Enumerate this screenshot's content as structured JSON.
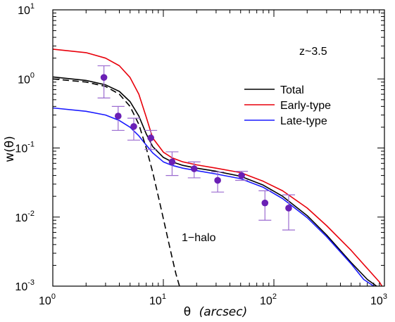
{
  "chart_data": {
    "type": "line",
    "xlabel": "θ",
    "xlabel_unit": "(arcsec)",
    "ylabel": "w(θ)",
    "xscale": "log",
    "yscale": "log",
    "xlim": [
      1,
      1000
    ],
    "ylim": [
      0.001,
      10
    ],
    "x_ticks": [
      {
        "base": "10",
        "exp": "0"
      },
      {
        "base": "10",
        "exp": "1"
      },
      {
        "base": "10",
        "exp": "2"
      },
      {
        "base": "10",
        "exp": "3"
      }
    ],
    "y_ticks": [
      {
        "base": "10",
        "exp": "1"
      },
      {
        "base": "10",
        "exp": "0"
      },
      {
        "base": "10",
        "exp": "-1"
      },
      {
        "base": "10",
        "exp": "-2"
      },
      {
        "base": "10",
        "exp": "-3"
      }
    ],
    "annotations": {
      "redshift": "z~3.5",
      "one_halo": "1−halo"
    },
    "legend_position": "upper-right",
    "series": [
      {
        "name": "Total",
        "color": "#000000",
        "style": "solid",
        "x": [
          1,
          2,
          3,
          4,
          5,
          6,
          7,
          8,
          10,
          12,
          15,
          20,
          30,
          50,
          80,
          120,
          200,
          300,
          500,
          700,
          850
        ],
        "y": [
          1.07,
          0.95,
          0.82,
          0.66,
          0.47,
          0.29,
          0.16,
          0.105,
          0.073,
          0.063,
          0.056,
          0.051,
          0.046,
          0.039,
          0.029,
          0.02,
          0.0105,
          0.0055,
          0.0022,
          0.00125,
          0.001
        ]
      },
      {
        "name": "Early-type",
        "color": "#e8000b",
        "style": "solid",
        "x": [
          1,
          2,
          3,
          4,
          5,
          6,
          7,
          8,
          10,
          12,
          15,
          20,
          30,
          50,
          80,
          120,
          200,
          300,
          500,
          700,
          900,
          950
        ],
        "y": [
          2.7,
          2.4,
          2.0,
          1.55,
          1.05,
          0.6,
          0.28,
          0.14,
          0.087,
          0.072,
          0.063,
          0.057,
          0.051,
          0.044,
          0.033,
          0.024,
          0.0135,
          0.0075,
          0.0033,
          0.0018,
          0.00115,
          0.001
        ]
      },
      {
        "name": "Late-type",
        "color": "#1a1aff",
        "style": "solid",
        "x": [
          1,
          2,
          3,
          4,
          5,
          6,
          7,
          8,
          10,
          12,
          15,
          20,
          30,
          50,
          80,
          120,
          200,
          300,
          500,
          650,
          800
        ],
        "y": [
          0.38,
          0.34,
          0.3,
          0.25,
          0.2,
          0.15,
          0.11,
          0.085,
          0.063,
          0.056,
          0.051,
          0.047,
          0.042,
          0.036,
          0.027,
          0.0185,
          0.0098,
          0.0052,
          0.0021,
          0.00125,
          0.001
        ]
      },
      {
        "name": "1-halo",
        "color": "#000000",
        "style": "dashed",
        "x": [
          1,
          2,
          3,
          4,
          5,
          6,
          7,
          8,
          9,
          10,
          11,
          12,
          13,
          14
        ],
        "y": [
          1.0,
          0.9,
          0.78,
          0.6,
          0.4,
          0.22,
          0.1,
          0.045,
          0.02,
          0.0095,
          0.0048,
          0.0026,
          0.0015,
          0.001
        ]
      }
    ],
    "points": {
      "color": "#6a1fb5",
      "x": [
        2.9,
        3.9,
        5.4,
        7.7,
        12,
        19,
        31,
        51,
        83,
        136
      ],
      "y": [
        1.05,
        0.29,
        0.205,
        0.14,
        0.063,
        0.05,
        0.034,
        0.04,
        0.016,
        0.0135
      ],
      "ylow": [
        0.53,
        0.18,
        0.13,
        0.095,
        0.04,
        0.037,
        0.023,
        0.034,
        0.009,
        0.0065
      ],
      "yhigh": [
        1.55,
        0.4,
        0.27,
        0.18,
        0.088,
        0.063,
        0.045,
        0.046,
        0.024,
        0.021
      ]
    }
  }
}
